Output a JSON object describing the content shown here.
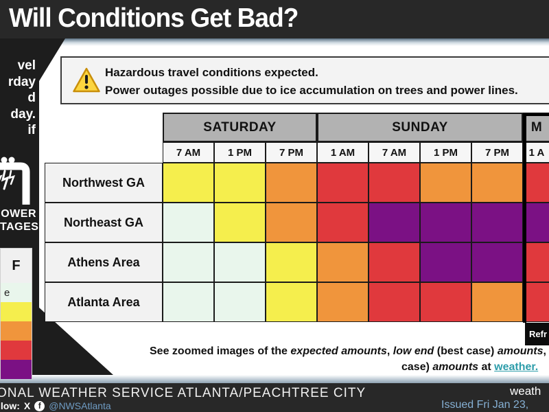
{
  "title": "Will Conditions Get Bad?",
  "alert": {
    "line1": "Hazardous travel conditions expected.",
    "line2": "Power outages possible due to ice accumulation on trees and power lines."
  },
  "sidebar": {
    "fragments": [
      "vel",
      "rday",
      "d",
      "day.",
      "if"
    ],
    "power_caption": [
      "OWER",
      "TAGES"
    ],
    "legend": {
      "header": "F",
      "rows": [
        {
          "label": "e",
          "color": "#e9f6ec"
        },
        {
          "label": "",
          "color": "#f5ee4d"
        },
        {
          "label": "",
          "color": "#f0953c"
        },
        {
          "label": "",
          "color": "#e0393d"
        },
        {
          "label": "",
          "color": "#7b1184"
        }
      ]
    }
  },
  "severity_colors": {
    "none": "#e9f6ec",
    "yellow": "#f5ee4d",
    "orange": "#f0953c",
    "red": "#e0393d",
    "purple": "#7b1184"
  },
  "table": {
    "day_headers": [
      {
        "label": "SATURDAY",
        "span": 3,
        "highlight": false
      },
      {
        "label": "SUNDAY",
        "span": 4,
        "highlight": false
      },
      {
        "label": "M",
        "span": 1,
        "highlight": true
      }
    ],
    "time_headers": [
      "7 AM",
      "1 PM",
      "7 PM",
      "1 AM",
      "7 AM",
      "1 PM",
      "7 PM",
      "1 A"
    ],
    "rows": [
      {
        "region": "Northwest GA",
        "cells": [
          "yellow",
          "yellow",
          "orange",
          "red",
          "red",
          "orange",
          "orange",
          "red"
        ]
      },
      {
        "region": "Northeast GA",
        "cells": [
          "none",
          "yellow",
          "orange",
          "red",
          "purple",
          "purple",
          "purple",
          "purple"
        ]
      },
      {
        "region": "Athens Area",
        "cells": [
          "none",
          "none",
          "yellow",
          "orange",
          "red",
          "purple",
          "purple",
          "red"
        ]
      },
      {
        "region": "Atlanta Area",
        "cells": [
          "none",
          "none",
          "yellow",
          "orange",
          "red",
          "red",
          "orange",
          "red"
        ]
      }
    ],
    "refreeze_badge": "Refr"
  },
  "note": {
    "line1": [
      {
        "text": "See zoomed  images of the "
      },
      {
        "text": "expected amounts",
        "italic": true
      },
      {
        "text": ", "
      },
      {
        "text": "low end",
        "italic": true
      },
      {
        "text": " (best case) "
      },
      {
        "text": "amounts",
        "italic": true
      },
      {
        "text": ", and "
      }
    ],
    "line2": [
      {
        "text": "case) "
      },
      {
        "text": "amounts",
        "italic": true
      },
      {
        "text": " at "
      },
      {
        "text": "weather.",
        "link": true
      }
    ]
  },
  "footer": {
    "org": "ONAL WEATHER SERVICE ATLANTA/PEACHTREE CITY",
    "follow": "llow:",
    "handle": "@NWSAtlanta",
    "site": "weath",
    "issued": "Issued Fri Jan 23,"
  },
  "colors": {
    "link_teal": "#2d9daa",
    "footer_blue": "#86b0d4",
    "handle_blue": "#6f9cc4",
    "header_gray": "#b2b2b2",
    "dark_bar": "#282828"
  }
}
